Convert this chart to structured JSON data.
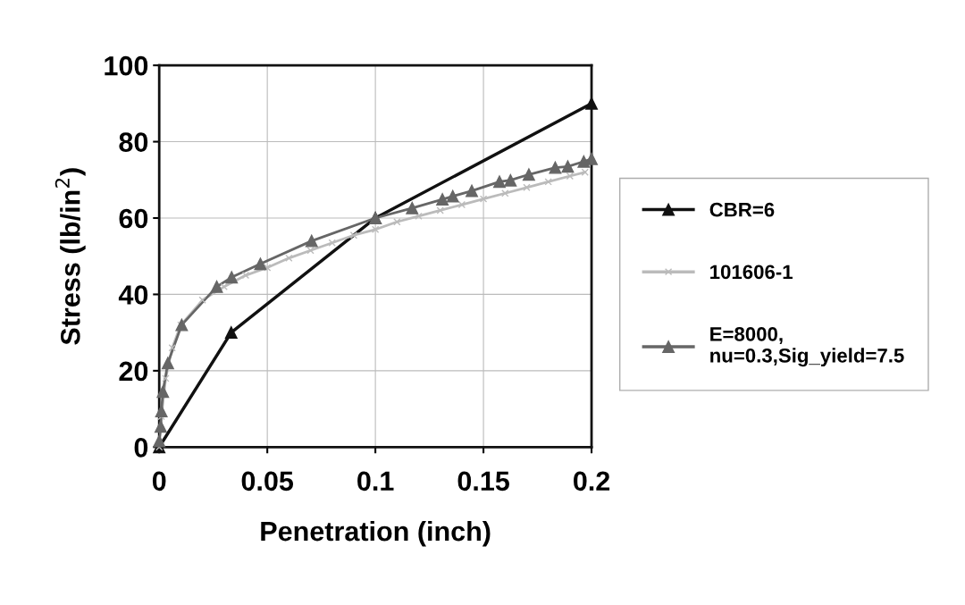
{
  "chart_data": {
    "type": "line",
    "xlabel": "Penetration (inch)",
    "ylabel": "Stress (lb/in$^{2}$)",
    "xlim": [
      0,
      0.2
    ],
    "xticks": [
      0,
      0.05,
      0.1,
      0.15,
      0.2
    ],
    "ylim": [
      0,
      100
    ],
    "yticks": [
      0,
      20,
      40,
      60,
      80,
      100
    ],
    "grid": true,
    "legend": "right",
    "series": [
      {
        "name": "CBR=6",
        "color": "#111111",
        "marker": "triangle",
        "x": [
          0,
          0.0333,
          0.1,
          0.2
        ],
        "values": [
          0,
          30,
          60,
          90
        ]
      },
      {
        "name": "101606-1",
        "color": "#bbbbbb",
        "marker": "cross",
        "x": [
          0,
          0.001,
          0.003,
          0.006,
          0.01,
          0.02,
          0.03,
          0.04,
          0.05,
          0.06,
          0.07,
          0.08,
          0.09,
          0.1,
          0.11,
          0.12,
          0.13,
          0.14,
          0.15,
          0.16,
          0.17,
          0.18,
          0.19,
          0.197
        ],
        "values": [
          0,
          8,
          18,
          26,
          32,
          38.5,
          42,
          45,
          47,
          49.5,
          51.5,
          53.5,
          55.5,
          57,
          59,
          60.5,
          62,
          63.5,
          65,
          66.5,
          68,
          69.5,
          71,
          72
        ]
      },
      {
        "name": "E=8000,\nnu=0.3,Sig_yield=7.5",
        "color": "#666666",
        "marker": "triangle",
        "x": [
          0,
          0.0007,
          0.001,
          0.0017,
          0.004,
          0.0104,
          0.0266,
          0.0335,
          0.0468,
          0.0705,
          0.1,
          0.117,
          0.131,
          0.1358,
          0.1446,
          0.1574,
          0.1625,
          0.171,
          0.1832,
          0.189,
          0.1964,
          0.2
        ],
        "values": [
          1.6,
          5.4,
          9.4,
          14.5,
          22,
          32,
          42,
          44.5,
          48,
          54,
          60,
          62.6,
          64.9,
          65.7,
          67.1,
          69.5,
          69.9,
          71.4,
          73.2,
          73.5,
          74.8,
          75.5
        ]
      }
    ]
  }
}
